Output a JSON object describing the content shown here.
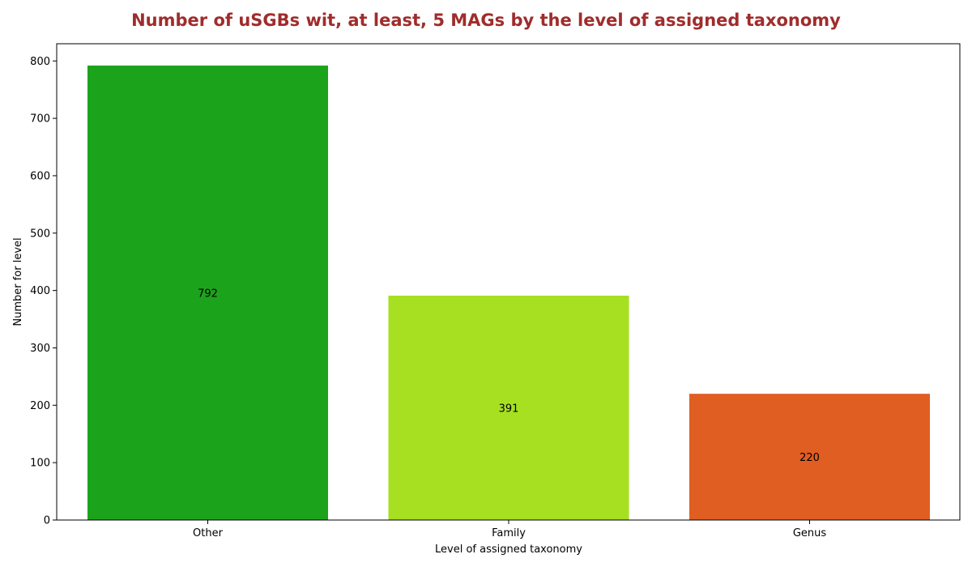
{
  "colors": {
    "title": "#a02c2c",
    "Other": "#1ca31c",
    "Family": "#a6e021",
    "Genus": "#e05e21"
  },
  "chart_data": {
    "type": "bar",
    "title": "Number of uSGBs wit, at least, 5 MAGs by the level of assigned taxonomy",
    "xlabel": "Level of assigned taxonomy",
    "ylabel": "Number for level",
    "categories": [
      "Other",
      "Family",
      "Genus"
    ],
    "values": [
      792,
      391,
      220
    ],
    "ylim": [
      0,
      830
    ],
    "yticks": [
      0,
      100,
      200,
      300,
      400,
      500,
      600,
      700,
      800
    ],
    "grid": false,
    "legend": "none"
  }
}
